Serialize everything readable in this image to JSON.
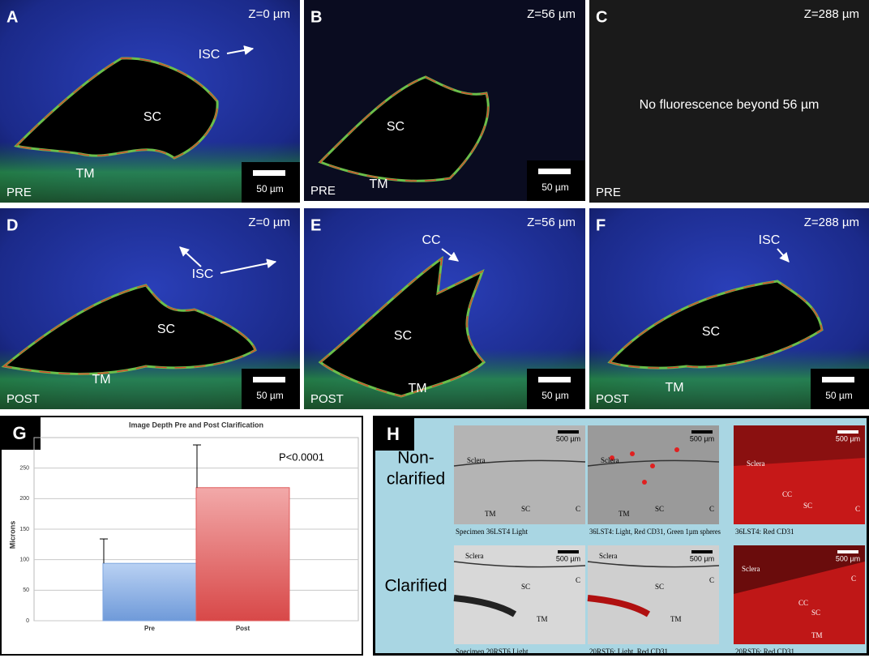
{
  "panels": [
    {
      "letter": "A",
      "depth": "Z=0 µm",
      "stage": "PRE",
      "scale_bar": "50 µm",
      "labels": [
        "SC",
        "TM",
        "ISC"
      ]
    },
    {
      "letter": "B",
      "depth": "Z=56 µm",
      "stage": "PRE",
      "scale_bar": "50 µm",
      "labels": [
        "SC",
        "TM"
      ]
    },
    {
      "letter": "C",
      "depth": "Z=288 µm",
      "stage": "PRE",
      "note": "No fluorescence beyond 56 µm"
    },
    {
      "letter": "D",
      "depth": "Z=0 µm",
      "stage": "POST",
      "scale_bar": "50 µm",
      "labels": [
        "SC",
        "TM",
        "ISC"
      ]
    },
    {
      "letter": "E",
      "depth": "Z=56 µm",
      "stage": "POST",
      "scale_bar": "50 µm",
      "labels": [
        "SC",
        "TM",
        "CC"
      ]
    },
    {
      "letter": "F",
      "depth": "Z=288 µm",
      "stage": "POST",
      "scale_bar": "50 µm",
      "labels": [
        "SC",
        "TM",
        "ISC"
      ]
    }
  ],
  "chart_data": {
    "type": "bar",
    "panel_letter": "G",
    "title": "Image Depth Pre and Post Clarification",
    "y_label": "Microns",
    "categories": [
      "Pre",
      "Post"
    ],
    "values": [
      94,
      218
    ],
    "errors": [
      40,
      70
    ],
    "colors": [
      "#7ea6e0",
      "#e05c5c"
    ],
    "annotation": "P<0.0001",
    "ylim": [
      0,
      300
    ],
    "yticks": [
      0,
      50,
      100,
      150,
      200,
      250
    ],
    "grid": true
  },
  "panel_h": {
    "letter": "H",
    "rows": [
      {
        "label_lines": [
          "Non-",
          "clarified"
        ],
        "images": [
          {
            "caption": "Specimen 36LST4 Light",
            "scale_bar": "500 µm",
            "labels": [
              "Sclera",
              "SC",
              "TM",
              "C"
            ]
          },
          {
            "caption": "36LST4: Light, Red CD31, Green 1µm spheres",
            "scale_bar": "500 µm",
            "labels": [
              "Sclera",
              "SC",
              "TM",
              "C"
            ]
          },
          {
            "caption": "36LST4: Red CD31",
            "scale_bar": "500 µm",
            "labels": [
              "Sclera",
              "CC",
              "SC",
              "C"
            ]
          }
        ]
      },
      {
        "label_lines": [
          "Clarified"
        ],
        "images": [
          {
            "caption": "Specimen 20RST6 Light",
            "scale_bar": "500 µm",
            "labels": [
              "Sclera",
              "SC",
              "C",
              "TM"
            ]
          },
          {
            "caption": "20RST6: Light, Red CD31",
            "scale_bar": "500 µm",
            "labels": [
              "Sclera",
              "SC",
              "C",
              "TM"
            ]
          },
          {
            "caption": "20RST6: Red CD31",
            "scale_bar": "500 µm",
            "labels": [
              "Sclera",
              "CC",
              "SC",
              "C",
              "TM"
            ]
          }
        ]
      }
    ]
  }
}
